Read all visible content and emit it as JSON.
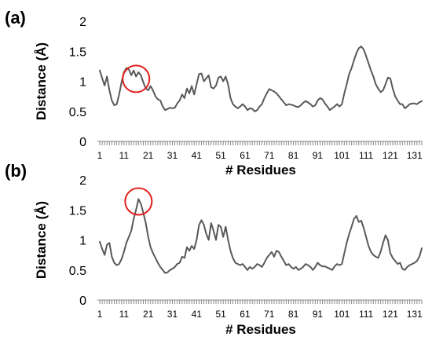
{
  "chart_data": [
    {
      "panel": "(a)",
      "type": "line",
      "xlabel": "# Residues",
      "ylabel": "Distance (Å)",
      "ylim": [
        0,
        2
      ],
      "yticks": [
        "0",
        "0.5",
        "1",
        "1.5",
        "2"
      ],
      "xlim": [
        1,
        134
      ],
      "xticks": [
        1,
        11,
        21,
        31,
        41,
        51,
        61,
        71,
        81,
        91,
        101,
        111,
        121,
        131
      ],
      "grid": false,
      "highlight_residue": 16,
      "series": [
        {
          "x": [
            1,
            2,
            3,
            4,
            5,
            6,
            7,
            8,
            9,
            10,
            11,
            12,
            13,
            14,
            15,
            16,
            17,
            18,
            19,
            20,
            21,
            22,
            23,
            24,
            25,
            26,
            27,
            28,
            29,
            30,
            31,
            32,
            33,
            34,
            35,
            36,
            37,
            38,
            39,
            40,
            41,
            42,
            43,
            44,
            45,
            46,
            47,
            48,
            49,
            50,
            51,
            52,
            53,
            54,
            55,
            56,
            57,
            58,
            59,
            60,
            61,
            62,
            63,
            64,
            65,
            66,
            67,
            68,
            69,
            70,
            71,
            72,
            73,
            74,
            75,
            76,
            77,
            78,
            79,
            80,
            81,
            82,
            83,
            84,
            85,
            86,
            87,
            88,
            89,
            90,
            91,
            92,
            93,
            94,
            95,
            96,
            97,
            98,
            99,
            100,
            101,
            102,
            103,
            104,
            105,
            106,
            107,
            108,
            109,
            110,
            111,
            112,
            113,
            114,
            115,
            116,
            117,
            118,
            119,
            120,
            121,
            122,
            123,
            124,
            125,
            126,
            127,
            128,
            129,
            130,
            131,
            132,
            133,
            134
          ],
          "y": [
            1.18,
            1.05,
            0.93,
            1.08,
            0.85,
            0.68,
            0.6,
            0.62,
            0.78,
            0.98,
            1.15,
            1.22,
            1.2,
            1.1,
            1.18,
            1.08,
            1.15,
            1.1,
            0.98,
            0.88,
            0.85,
            0.92,
            0.85,
            0.75,
            0.7,
            0.68,
            0.58,
            0.52,
            0.54,
            0.56,
            0.55,
            0.56,
            0.63,
            0.68,
            0.78,
            0.72,
            0.88,
            0.8,
            0.92,
            0.78,
            0.95,
            1.12,
            1.13,
            1.0,
            1.05,
            1.1,
            0.9,
            0.88,
            0.93,
            1.06,
            1.08,
            1.0,
            1.08,
            0.95,
            0.72,
            0.62,
            0.58,
            0.55,
            0.58,
            0.62,
            0.58,
            0.52,
            0.55,
            0.54,
            0.5,
            0.52,
            0.58,
            0.62,
            0.72,
            0.8,
            0.87,
            0.85,
            0.83,
            0.8,
            0.75,
            0.7,
            0.65,
            0.6,
            0.62,
            0.61,
            0.6,
            0.58,
            0.57,
            0.6,
            0.64,
            0.67,
            0.65,
            0.62,
            0.58,
            0.6,
            0.68,
            0.72,
            0.7,
            0.63,
            0.58,
            0.52,
            0.55,
            0.58,
            0.62,
            0.58,
            0.62,
            0.8,
            0.95,
            1.12,
            1.22,
            1.35,
            1.47,
            1.55,
            1.58,
            1.53,
            1.42,
            1.3,
            1.18,
            1.08,
            0.95,
            0.88,
            0.82,
            0.85,
            0.95,
            1.06,
            1.05,
            0.88,
            0.75,
            0.68,
            0.62,
            0.62,
            0.55,
            0.58,
            0.62,
            0.63,
            0.63,
            0.62,
            0.65,
            0.67
          ]
        }
      ]
    },
    {
      "panel": "(b)",
      "type": "line",
      "xlabel": "# Residues",
      "ylabel": "Distance (Å)",
      "ylim": [
        0,
        2
      ],
      "yticks": [
        "0",
        "0.5",
        "1",
        "1.5",
        "2"
      ],
      "xlim": [
        1,
        134
      ],
      "xticks": [
        1,
        11,
        21,
        31,
        41,
        51,
        61,
        71,
        81,
        91,
        101,
        111,
        121,
        131
      ],
      "grid": false,
      "highlight_residue": 17,
      "series": [
        {
          "x": [
            1,
            2,
            3,
            4,
            5,
            6,
            7,
            8,
            9,
            10,
            11,
            12,
            13,
            14,
            15,
            16,
            17,
            18,
            19,
            20,
            21,
            22,
            23,
            24,
            25,
            26,
            27,
            28,
            29,
            30,
            31,
            32,
            33,
            34,
            35,
            36,
            37,
            38,
            39,
            40,
            41,
            42,
            43,
            44,
            45,
            46,
            47,
            48,
            49,
            50,
            51,
            52,
            53,
            54,
            55,
            56,
            57,
            58,
            59,
            60,
            61,
            62,
            63,
            64,
            65,
            66,
            67,
            68,
            69,
            70,
            71,
            72,
            73,
            74,
            75,
            76,
            77,
            78,
            79,
            80,
            81,
            82,
            83,
            84,
            85,
            86,
            87,
            88,
            89,
            90,
            91,
            92,
            93,
            94,
            95,
            96,
            97,
            98,
            99,
            100,
            101,
            102,
            103,
            104,
            105,
            106,
            107,
            108,
            109,
            110,
            111,
            112,
            113,
            114,
            115,
            116,
            117,
            118,
            119,
            120,
            121,
            122,
            123,
            124,
            125,
            126,
            127,
            128,
            129,
            130,
            131,
            132,
            133,
            134
          ],
          "y": [
            0.97,
            0.85,
            0.75,
            0.92,
            0.95,
            0.72,
            0.62,
            0.58,
            0.6,
            0.68,
            0.8,
            0.95,
            1.05,
            1.15,
            1.35,
            1.5,
            1.68,
            1.6,
            1.45,
            1.28,
            1.05,
            0.88,
            0.78,
            0.7,
            0.62,
            0.55,
            0.5,
            0.45,
            0.46,
            0.5,
            0.52,
            0.55,
            0.6,
            0.62,
            0.72,
            0.7,
            0.88,
            0.82,
            0.9,
            0.85,
            1.0,
            1.25,
            1.33,
            1.25,
            1.1,
            1.0,
            1.28,
            1.15,
            1.0,
            1.25,
            1.22,
            1.05,
            1.22,
            1.0,
            0.82,
            0.7,
            0.62,
            0.6,
            0.58,
            0.6,
            0.55,
            0.5,
            0.55,
            0.52,
            0.55,
            0.6,
            0.58,
            0.55,
            0.62,
            0.7,
            0.75,
            0.8,
            0.72,
            0.82,
            0.8,
            0.72,
            0.65,
            0.58,
            0.6,
            0.55,
            0.52,
            0.55,
            0.5,
            0.52,
            0.55,
            0.6,
            0.58,
            0.55,
            0.5,
            0.55,
            0.62,
            0.58,
            0.56,
            0.56,
            0.54,
            0.52,
            0.5,
            0.56,
            0.6,
            0.58,
            0.6,
            0.78,
            0.95,
            1.1,
            1.22,
            1.35,
            1.4,
            1.3,
            1.32,
            1.2,
            1.05,
            0.9,
            0.8,
            0.75,
            0.72,
            0.7,
            0.8,
            0.95,
            1.08,
            1.0,
            0.78,
            0.7,
            0.65,
            0.6,
            0.62,
            0.52,
            0.5,
            0.55,
            0.58,
            0.6,
            0.62,
            0.65,
            0.72,
            0.86
          ]
        }
      ]
    }
  ]
}
